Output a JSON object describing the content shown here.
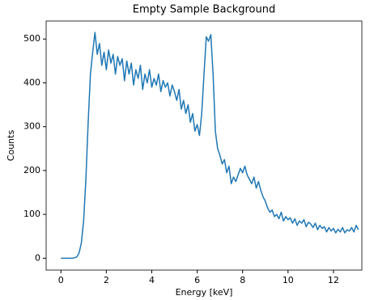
{
  "chart_data": {
    "type": "line",
    "title": "Empty Sample Background",
    "x_label": "Energy [keV]",
    "y_label": "Counts",
    "x": [
      0,
      0.1,
      0.2,
      0.3,
      0.4,
      0.5,
      0.6,
      0.7,
      0.8,
      0.9,
      1,
      1.1,
      1.2,
      1.3,
      1.4,
      1.5,
      1.6,
      1.7,
      1.8,
      1.9,
      2,
      2.1,
      2.2,
      2.3,
      2.4,
      2.5,
      2.6,
      2.7,
      2.8,
      2.9,
      3,
      3.1,
      3.2,
      3.3,
      3.4,
      3.5,
      3.6,
      3.7,
      3.8,
      3.9,
      4,
      4.1,
      4.2,
      4.3,
      4.4,
      4.5,
      4.6,
      4.7,
      4.8,
      4.9,
      5,
      5.1,
      5.2,
      5.3,
      5.4,
      5.5,
      5.6,
      5.7,
      5.8,
      5.9,
      6,
      6.1,
      6.2,
      6.3,
      6.4,
      6.5,
      6.6,
      6.7,
      6.8,
      6.9,
      7,
      7.1,
      7.2,
      7.3,
      7.4,
      7.5,
      7.6,
      7.7,
      7.8,
      7.9,
      8,
      8.1,
      8.2,
      8.3,
      8.4,
      8.5,
      8.6,
      8.7,
      8.8,
      8.9,
      9,
      9.1,
      9.2,
      9.3,
      9.4,
      9.5,
      9.6,
      9.7,
      9.8,
      9.9,
      10,
      10.1,
      10.2,
      10.3,
      10.4,
      10.5,
      10.6,
      10.7,
      10.8,
      10.9,
      11,
      11.1,
      11.2,
      11.3,
      11.4,
      11.5,
      11.6,
      11.7,
      11.8,
      11.9,
      12,
      12.1,
      12.2,
      12.3,
      12.4,
      12.5,
      12.6,
      12.7,
      12.8,
      12.9,
      13,
      13.1
    ],
    "values": [
      0,
      0,
      0,
      0,
      0,
      0,
      1,
      3,
      12,
      35,
      85,
      180,
      310,
      420,
      470,
      515,
      465,
      490,
      440,
      470,
      430,
      475,
      445,
      465,
      420,
      460,
      440,
      455,
      405,
      450,
      420,
      445,
      395,
      430,
      410,
      440,
      385,
      420,
      400,
      430,
      390,
      410,
      395,
      420,
      380,
      405,
      390,
      400,
      370,
      395,
      380,
      360,
      385,
      340,
      360,
      330,
      350,
      310,
      330,
      290,
      305,
      280,
      330,
      420,
      505,
      495,
      510,
      420,
      290,
      250,
      235,
      215,
      225,
      195,
      210,
      170,
      185,
      175,
      190,
      205,
      195,
      210,
      190,
      180,
      170,
      185,
      160,
      175,
      155,
      140,
      130,
      115,
      105,
      110,
      95,
      100,
      90,
      105,
      85,
      95,
      88,
      92,
      80,
      90,
      75,
      85,
      80,
      88,
      72,
      82,
      78,
      70,
      80,
      65,
      75,
      68,
      72,
      60,
      70,
      62,
      68,
      58,
      66,
      60,
      70,
      58,
      65,
      62,
      70,
      60,
      75,
      65
    ],
    "color": "#1f77b4",
    "xlim": [
      -0.65,
      13.25
    ],
    "ylim": [
      -27,
      541
    ],
    "xticks": [
      0,
      2,
      4,
      6,
      8,
      10,
      12
    ],
    "yticks": [
      0,
      100,
      200,
      300,
      400,
      500
    ]
  }
}
